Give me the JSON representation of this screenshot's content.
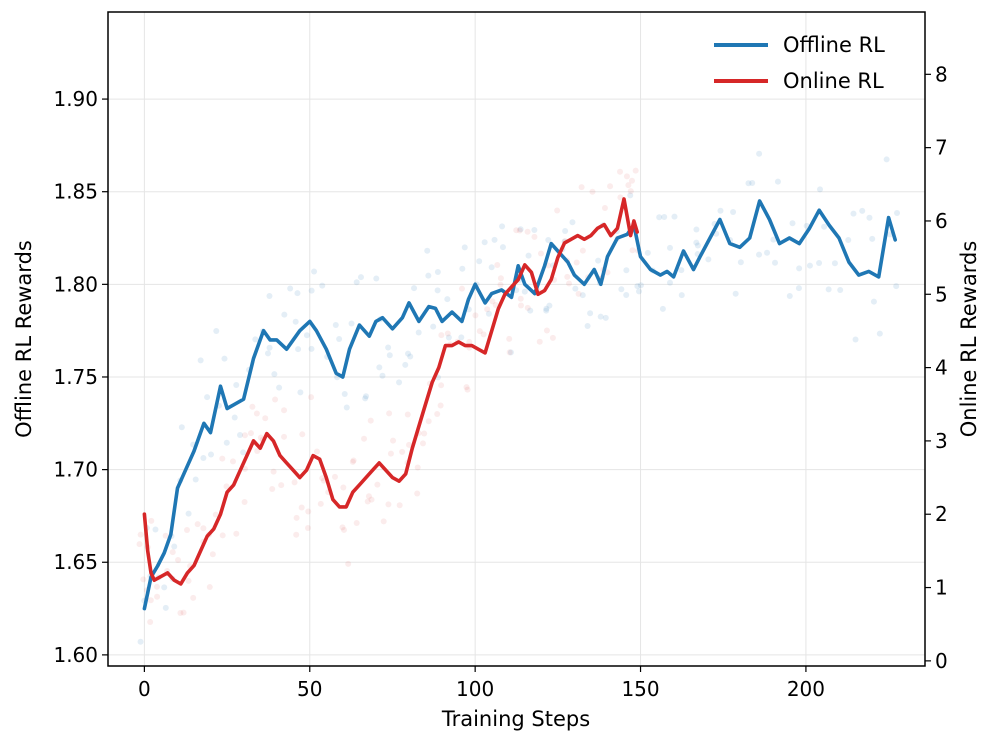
{
  "chart_data": {
    "type": "line",
    "title": "",
    "xlabel": "Training Steps",
    "ylabel_left": "Offline RL Rewards",
    "ylabel_right": "Online RL Rewards",
    "xlim": [
      -11,
      236
    ],
    "ylim_left": [
      1.594,
      1.947
    ],
    "ylim_right": [
      -0.07,
      8.85
    ],
    "x_ticks": [
      0,
      50,
      100,
      150,
      200
    ],
    "y_left_ticks": [
      1.6,
      1.65,
      1.7,
      1.75,
      1.8,
      1.85,
      1.9
    ],
    "y_left_tick_labels": [
      "1.60",
      "1.65",
      "1.70",
      "1.75",
      "1.80",
      "1.85",
      "1.90"
    ],
    "y_right_ticks": [
      0,
      1,
      2,
      3,
      4,
      5,
      6,
      7,
      8
    ],
    "grid": true,
    "legend_position": "top-right",
    "colors": {
      "offline": "#1f77b4",
      "online": "#d62728"
    },
    "series": [
      {
        "name": "Offline RL",
        "axis": "left",
        "x": [
          0,
          2,
          4,
          6,
          8,
          10,
          12,
          15,
          18,
          20,
          23,
          25,
          27,
          30,
          33,
          36,
          38,
          40,
          43,
          45,
          47,
          50,
          52,
          55,
          58,
          60,
          62,
          65,
          68,
          70,
          72,
          75,
          78,
          80,
          83,
          86,
          88,
          90,
          93,
          96,
          98,
          100,
          103,
          105,
          108,
          111,
          113,
          115,
          118,
          121,
          123,
          125,
          128,
          130,
          133,
          136,
          138,
          140,
          143,
          146,
          148,
          150,
          153,
          156,
          158,
          160,
          163,
          166,
          168,
          171,
          174,
          177,
          180,
          183,
          186,
          189,
          192,
          195,
          198,
          201,
          204,
          207,
          210,
          213,
          216,
          219,
          222,
          225,
          227
        ],
        "y": [
          1.625,
          1.642,
          1.648,
          1.655,
          1.665,
          1.69,
          1.698,
          1.71,
          1.725,
          1.72,
          1.745,
          1.733,
          1.735,
          1.738,
          1.76,
          1.775,
          1.77,
          1.77,
          1.765,
          1.77,
          1.775,
          1.78,
          1.775,
          1.765,
          1.752,
          1.75,
          1.765,
          1.778,
          1.772,
          1.78,
          1.782,
          1.776,
          1.782,
          1.79,
          1.78,
          1.788,
          1.787,
          1.78,
          1.785,
          1.78,
          1.792,
          1.8,
          1.79,
          1.795,
          1.797,
          1.793,
          1.81,
          1.8,
          1.795,
          1.81,
          1.822,
          1.818,
          1.812,
          1.805,
          1.8,
          1.808,
          1.8,
          1.815,
          1.825,
          1.827,
          1.832,
          1.815,
          1.808,
          1.805,
          1.807,
          1.804,
          1.818,
          1.808,
          1.815,
          1.825,
          1.835,
          1.822,
          1.82,
          1.825,
          1.845,
          1.835,
          1.822,
          1.825,
          1.822,
          1.83,
          1.84,
          1.832,
          1.825,
          1.812,
          1.805,
          1.807,
          1.804,
          1.836,
          1.824
        ]
      },
      {
        "name": "Online RL",
        "axis": "right",
        "x": [
          0,
          1,
          2,
          3,
          5,
          7,
          9,
          11,
          13,
          15,
          17,
          19,
          21,
          23,
          25,
          27,
          29,
          31,
          33,
          35,
          37,
          39,
          41,
          43,
          45,
          47,
          49,
          51,
          53,
          55,
          57,
          59,
          61,
          63,
          65,
          67,
          69,
          71,
          73,
          75,
          77,
          79,
          81,
          83,
          85,
          87,
          89,
          91,
          93,
          95,
          97,
          99,
          101,
          103,
          105,
          107,
          109,
          111,
          113,
          115,
          117,
          119,
          121,
          123,
          125,
          127,
          129,
          131,
          133,
          135,
          137,
          139,
          141,
          143,
          145,
          147,
          148,
          149
        ],
        "y": [
          2.0,
          1.5,
          1.2,
          1.1,
          1.15,
          1.2,
          1.1,
          1.05,
          1.2,
          1.3,
          1.5,
          1.7,
          1.8,
          2.0,
          2.3,
          2.4,
          2.6,
          2.8,
          3.0,
          2.9,
          3.1,
          3.0,
          2.8,
          2.7,
          2.6,
          2.5,
          2.6,
          2.8,
          2.75,
          2.5,
          2.2,
          2.1,
          2.1,
          2.3,
          2.4,
          2.5,
          2.6,
          2.7,
          2.6,
          2.5,
          2.45,
          2.55,
          2.9,
          3.2,
          3.5,
          3.8,
          4.0,
          4.3,
          4.3,
          4.35,
          4.3,
          4.3,
          4.25,
          4.2,
          4.5,
          4.8,
          5.0,
          5.1,
          5.2,
          5.4,
          5.3,
          5.0,
          5.05,
          5.2,
          5.5,
          5.7,
          5.75,
          5.8,
          5.75,
          5.8,
          5.9,
          5.95,
          5.8,
          5.9,
          6.3,
          5.8,
          6.0,
          5.85
        ]
      }
    ]
  }
}
